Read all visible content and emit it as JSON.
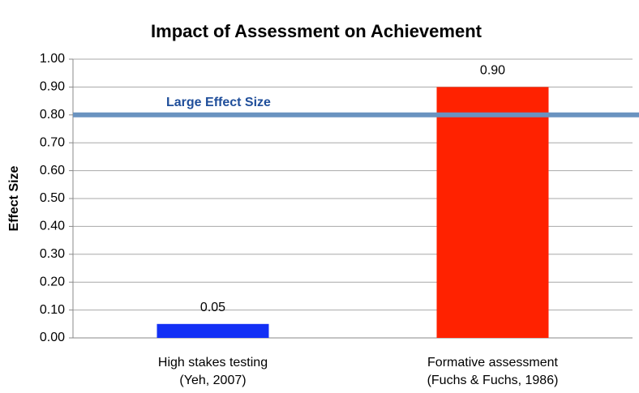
{
  "chart_data": {
    "type": "bar",
    "title": "Impact of Assessment on Achievement",
    "y_label": "Effect Size",
    "categories": [
      [
        "High stakes testing",
        "(Yeh, 2007)"
      ],
      [
        "Formative assessment",
        "(Fuchs & Fuchs, 1986)"
      ]
    ],
    "values": [
      0.05,
      0.9
    ],
    "value_labels": [
      "0.05",
      "0.90"
    ],
    "colors": [
      "#1330f5",
      "#ff2200"
    ],
    "ylim": [
      0,
      1
    ],
    "yticks": [
      {
        "value": 0,
        "label": "0.00"
      },
      {
        "value": 0.1,
        "label": "0.10"
      },
      {
        "value": 0.2,
        "label": "0.20"
      },
      {
        "value": 0.3,
        "label": "0.30"
      },
      {
        "value": 0.4,
        "label": "0.40"
      },
      {
        "value": 0.5,
        "label": "0.50"
      },
      {
        "value": 0.6,
        "label": "0.60"
      },
      {
        "value": 0.7,
        "label": "0.70"
      },
      {
        "value": 0.8,
        "label": "0.80"
      },
      {
        "value": 0.9,
        "label": "0.90"
      },
      {
        "value": 1,
        "label": "1.00"
      }
    ],
    "grid": true,
    "reference_line": {
      "value": 0.8,
      "label": "Large Effect Size",
      "color": "#6a93c0"
    }
  }
}
